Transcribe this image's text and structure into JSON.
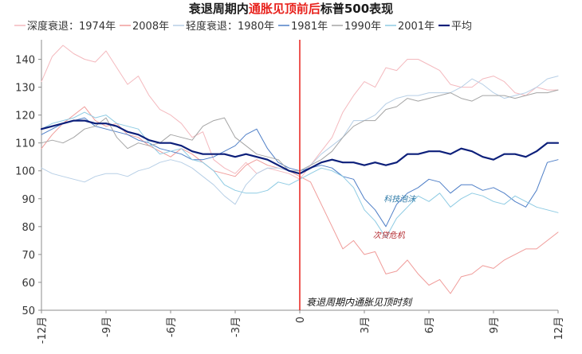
{
  "chart_data": {
    "type": "line",
    "title_parts": [
      {
        "text": "衰退周期内",
        "color": "#1a1a1a"
      },
      {
        "text": "通胀见顶前后",
        "color": "#e8211c"
      },
      {
        "text": "标普500表现",
        "color": "#1a1a1a"
      }
    ],
    "xlabel": "",
    "ylabel": "",
    "ylim": [
      50,
      147
    ],
    "yticks": [
      "50",
      "60",
      "70",
      "80",
      "90",
      "100",
      "110",
      "120",
      "130",
      "140"
    ],
    "xlim": [
      -12,
      12
    ],
    "xticks": [
      {
        "value": -12,
        "label": "-12月"
      },
      {
        "value": -9,
        "label": "-9月"
      },
      {
        "value": -6,
        "label": "-6月"
      },
      {
        "value": -3,
        "label": "-3月"
      },
      {
        "value": 0,
        "label": "0"
      },
      {
        "value": 3,
        "label": "3月"
      },
      {
        "value": 6,
        "label": "6月"
      },
      {
        "value": 9,
        "label": "9月"
      },
      {
        "value": 12,
        "label": "12月"
      }
    ],
    "grid": false,
    "legend_position": "top",
    "legend_groups": [
      {
        "prefix": "深度衰退：",
        "series_ids": [
          "s1974",
          "s2008"
        ]
      },
      {
        "prefix": "轻度衰退：",
        "series_ids": [
          "s1980",
          "s1981",
          "s1990",
          "s2001",
          "savg"
        ]
      }
    ],
    "series": [
      {
        "id": "s1974",
        "name": "1974年",
        "color": "#f4b9be",
        "width": 1,
        "x": [
          -12,
          -11.5,
          -11,
          -10.5,
          -10,
          -9.5,
          -9,
          -8.5,
          -8,
          -7.5,
          -7,
          -6.5,
          -6,
          -5.5,
          -5,
          -4.5,
          -4,
          -3.5,
          -3,
          -2.5,
          -2,
          -1.5,
          -1,
          -0.5,
          0,
          0.5,
          1,
          1.5,
          2,
          2.5,
          3,
          3.5,
          4,
          4.5,
          5,
          5.5,
          6,
          6.5,
          7,
          7.5,
          8,
          8.5,
          9,
          9.5,
          10,
          10.5,
          11,
          11.5,
          12
        ],
        "y": [
          132,
          141,
          145,
          142,
          140,
          139,
          143,
          137,
          131,
          134,
          127,
          122,
          120,
          117,
          112,
          114,
          104,
          101,
          99,
          103,
          99,
          101,
          100,
          99,
          97,
          102,
          107,
          112,
          121,
          127,
          132,
          130,
          137,
          136,
          140,
          140,
          138,
          136,
          131,
          130,
          130,
          133,
          134,
          132,
          128,
          127,
          130,
          129,
          129
        ]
      },
      {
        "id": "s2008",
        "name": "2008年",
        "color": "#f09c9a",
        "width": 1,
        "x": [
          -12,
          -11.5,
          -11,
          -10.5,
          -10,
          -9.5,
          -9,
          -8.5,
          -8,
          -7.5,
          -7,
          -6.5,
          -6,
          -5.5,
          -5,
          -4.5,
          -4,
          -3.5,
          -3,
          -2.5,
          -2,
          -1.5,
          -1,
          -0.5,
          0,
          0.5,
          1,
          1.5,
          2,
          2.5,
          3,
          3.5,
          4,
          4.5,
          5,
          5.5,
          6,
          6.5,
          7,
          7.5,
          8,
          8.5,
          9,
          9.5,
          10,
          10.5,
          11,
          11.5,
          12
        ],
        "y": [
          108,
          113,
          117,
          120,
          123,
          118,
          116,
          117,
          113,
          112,
          109,
          107,
          105,
          108,
          106,
          103,
          100,
          99,
          98,
          102,
          104,
          102,
          101,
          100,
          98,
          96,
          88,
          80,
          72,
          75,
          70,
          71,
          63,
          64,
          68,
          63,
          59,
          61,
          56,
          62,
          63,
          66,
          65,
          68,
          70,
          72,
          72,
          75,
          78
        ]
      },
      {
        "id": "s1980",
        "name": "1980年",
        "color": "#b7cfe6",
        "width": 1,
        "x": [
          -12,
          -11.5,
          -11,
          -10.5,
          -10,
          -9.5,
          -9,
          -8.5,
          -8,
          -7.5,
          -7,
          -6.5,
          -6,
          -5.5,
          -5,
          -4.5,
          -4,
          -3.5,
          -3,
          -2.5,
          -2,
          -1.5,
          -1,
          -0.5,
          0,
          0.5,
          1,
          1.5,
          2,
          2.5,
          3,
          3.5,
          4,
          4.5,
          5,
          5.5,
          6,
          6.5,
          7,
          7.5,
          8,
          8.5,
          9,
          9.5,
          10,
          10.5,
          11,
          11.5,
          12
        ],
        "y": [
          101,
          99,
          98,
          97,
          96,
          98,
          99,
          99,
          98,
          100,
          101,
          103,
          104,
          103,
          101,
          98,
          95,
          91,
          88,
          95,
          99,
          101,
          101,
          100,
          99,
          102,
          106,
          109,
          112,
          118,
          118,
          120,
          124,
          126,
          127,
          127,
          128,
          128,
          128,
          130,
          133,
          131,
          128,
          126,
          127,
          128,
          130,
          133,
          134
        ]
      },
      {
        "id": "s1981",
        "name": "1981年",
        "color": "#4f7fc7",
        "width": 1,
        "x": [
          -12,
          -11.5,
          -11,
          -10.5,
          -10,
          -9.5,
          -9,
          -8.5,
          -8,
          -7.5,
          -7,
          -6.5,
          -6,
          -5.5,
          -5,
          -4.5,
          -4,
          -3.5,
          -3,
          -2.5,
          -2,
          -1.5,
          -1,
          -0.5,
          0,
          0.5,
          1,
          1.5,
          2,
          2.5,
          3,
          3.5,
          4,
          4.5,
          5,
          5.5,
          6,
          6.5,
          7,
          7.5,
          8,
          8.5,
          9,
          9.5,
          10,
          10.5,
          11,
          11.5,
          12
        ],
        "y": [
          113,
          115,
          117,
          118,
          119,
          116,
          115,
          114,
          113,
          111,
          110,
          108,
          107,
          106,
          104,
          104,
          105,
          107,
          109,
          113,
          115,
          108,
          103,
          101,
          100,
          101,
          102,
          101,
          98,
          97,
          90,
          86,
          80,
          88,
          92,
          94,
          97,
          96,
          92,
          95,
          95,
          93,
          94,
          92,
          89,
          87,
          93,
          103,
          104
        ]
      },
      {
        "id": "s1990",
        "name": "1990年",
        "color": "#a5a5a5",
        "width": 1,
        "x": [
          -12,
          -11.5,
          -11,
          -10.5,
          -10,
          -9.5,
          -9,
          -8.5,
          -8,
          -7.5,
          -7,
          -6.5,
          -6,
          -5.5,
          -5,
          -4.5,
          -4,
          -3.5,
          -3,
          -2.5,
          -2,
          -1.5,
          -1,
          -0.5,
          0,
          0.5,
          1,
          1.5,
          2,
          2.5,
          3,
          3.5,
          4,
          4.5,
          5,
          5.5,
          6,
          6.5,
          7,
          7.5,
          8,
          8.5,
          9,
          9.5,
          10,
          10.5,
          11,
          11.5,
          12
        ],
        "y": [
          110,
          111,
          110,
          112,
          115,
          116,
          119,
          112,
          108,
          110,
          109,
          110,
          113,
          112,
          111,
          116,
          118,
          119,
          112,
          109,
          106,
          105,
          104,
          100,
          100,
          102,
          104,
          107,
          112,
          116,
          118,
          118,
          122,
          123,
          126,
          125,
          126,
          127,
          128,
          126,
          125,
          127,
          127,
          127,
          126,
          127,
          128,
          128,
          129
        ]
      },
      {
        "id": "s2001",
        "name": "2001年",
        "color": "#8ecbe3",
        "width": 1,
        "x": [
          -12,
          -11.5,
          -11,
          -10.5,
          -10,
          -9.5,
          -9,
          -8.5,
          -8,
          -7.5,
          -7,
          -6.5,
          -6,
          -5.5,
          -5,
          -4.5,
          -4,
          -3.5,
          -3,
          -2.5,
          -2,
          -1.5,
          -1,
          -0.5,
          0,
          0.5,
          1,
          1.5,
          2,
          2.5,
          3,
          3.5,
          4,
          4.5,
          5,
          5.5,
          6,
          6.5,
          7,
          7.5,
          8,
          8.5,
          9,
          9.5,
          10,
          10.5,
          11,
          11.5,
          12
        ],
        "y": [
          115,
          117,
          118,
          119,
          121,
          119,
          120,
          117,
          116,
          115,
          110,
          106,
          107,
          108,
          104,
          103,
          100,
          95,
          93,
          92,
          92,
          93,
          96,
          95,
          97,
          99,
          101,
          100,
          98,
          94,
          86,
          82,
          76,
          83,
          87,
          91,
          89,
          92,
          87,
          90,
          92,
          91,
          89,
          88,
          91,
          89,
          87,
          86,
          85
        ]
      },
      {
        "id": "savg",
        "name": "平均",
        "color": "#0c1f7a",
        "width": 2.2,
        "x": [
          -12,
          -11.5,
          -11,
          -10.5,
          -10,
          -9.5,
          -9,
          -8.5,
          -8,
          -7.5,
          -7,
          -6.5,
          -6,
          -5.5,
          -5,
          -4.5,
          -4,
          -3.5,
          -3,
          -2.5,
          -2,
          -1.5,
          -1,
          -0.5,
          0,
          0.5,
          1,
          1.5,
          2,
          2.5,
          3,
          3.5,
          4,
          4.5,
          5,
          5.5,
          6,
          6.5,
          7,
          7.5,
          8,
          8.5,
          9,
          9.5,
          10,
          10.5,
          11,
          11.5,
          12
        ],
        "y": [
          115,
          116,
          117,
          118,
          118,
          117,
          117,
          116,
          114,
          113,
          111,
          110,
          110,
          109,
          107,
          106,
          106,
          106,
          105,
          106,
          105,
          104,
          102,
          100,
          99,
          101,
          103,
          104,
          103,
          103,
          102,
          103,
          102,
          103,
          106,
          106,
          107,
          107,
          106,
          108,
          107,
          105,
          104,
          106,
          106,
          105,
          107,
          110,
          110
        ]
      }
    ],
    "event_line": {
      "x": 0,
      "color": "#e8211c",
      "label": "衰退周期内通胀见顶时刻"
    },
    "annotations": [
      {
        "text": "科技泡沫",
        "x": 3.9,
        "y": 89,
        "color": "#2d7aa7"
      },
      {
        "text": "次贷危机",
        "x": 3.4,
        "y": 76,
        "color": "#b3282d"
      }
    ]
  }
}
